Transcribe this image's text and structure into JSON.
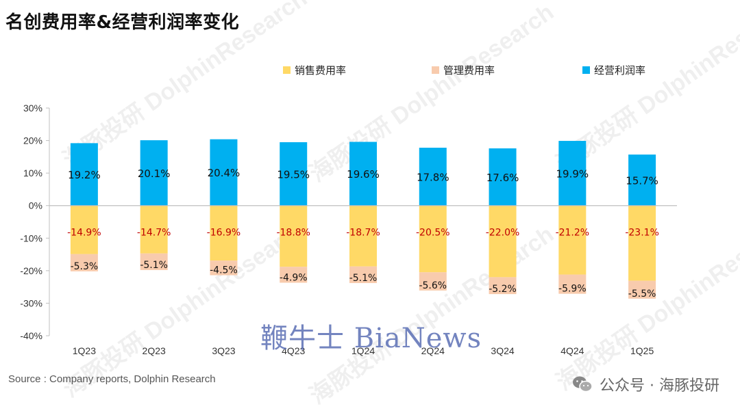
{
  "title": "名创费用率&经营利润率变化",
  "source": "Source : Company reports, Dolphin Research",
  "wechat_label": "公众号 · 海豚投研",
  "brand_watermark": "鞭牛士 BiaNews",
  "watermark_text": "海豚投研 DolphinResearch",
  "colors": {
    "sales": "#FFD966",
    "admin": "#F8CBAD",
    "op": "#00B0F0",
    "sales_label": "#C00000"
  },
  "chart_data": {
    "type": "bar",
    "stacked": true,
    "categories": [
      "1Q23",
      "2Q23",
      "3Q23",
      "4Q23",
      "1Q24",
      "2Q24",
      "3Q24",
      "4Q24",
      "1Q25"
    ],
    "series": [
      {
        "name": "销售费用率",
        "values": [
          -14.9,
          -14.7,
          -16.9,
          -18.8,
          -18.7,
          -20.5,
          -22.0,
          -21.2,
          -23.1
        ],
        "labels": [
          "-14.9%",
          "-14.7%",
          "-16.9%",
          "-18.8%",
          "-18.7%",
          "-20.5%",
          "-22.0%",
          "-21.2%",
          "-23.1%"
        ]
      },
      {
        "name": "管理费用率",
        "values": [
          -5.3,
          -5.1,
          -4.5,
          -4.9,
          -5.1,
          -5.6,
          -5.2,
          -5.9,
          -5.5
        ],
        "labels": [
          "-5.3%",
          "-5.1%",
          "-4.5%",
          "-4.9%",
          "-5.1%",
          "-5.6%",
          "-5.2%",
          "-5.9%",
          "-5.5%"
        ]
      },
      {
        "name": "经营利润率",
        "values": [
          19.2,
          20.1,
          20.4,
          19.5,
          19.6,
          17.8,
          17.6,
          19.9,
          15.7
        ],
        "labels": [
          "19.2%",
          "20.1%",
          "20.4%",
          "19.5%",
          "19.6%",
          "17.8%",
          "17.6%",
          "19.9%",
          "15.7%"
        ]
      }
    ],
    "ylim": [
      -40,
      30
    ],
    "yticks": [
      30,
      20,
      10,
      0,
      -10,
      -20,
      -30,
      -40
    ],
    "ytick_labels": [
      "30%",
      "20%",
      "10%",
      "0%",
      "-10%",
      "-20%",
      "-30%",
      "-40%"
    ],
    "legend_position": "top",
    "grid": false
  }
}
